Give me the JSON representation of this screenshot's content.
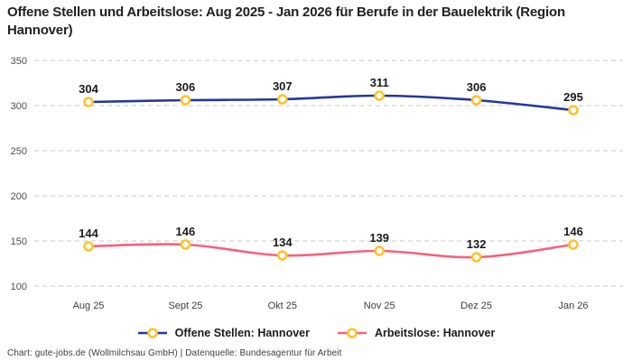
{
  "title": "Offene Stellen und Arbeitslose: Aug 2025 - Jan 2026 für Berufe in der Bauelektrik (Region Hannover)",
  "footer": "Chart: gute-jobs.de (Wollmilchsau GmbH) | Datenquelle: Bundesagentur für Arbeit",
  "colors": {
    "series_open_positions": "#25379c",
    "series_unemployed": "#f9617d",
    "marker_fill": "#ffffff",
    "marker_stroke": "#fcc42c",
    "gridline": "#c9c9c9",
    "title_text": "#212121",
    "tick_text": "#4d4d4d",
    "data_label_text": "#1b1b1b"
  },
  "chart_data": {
    "type": "line",
    "categories": [
      "Aug 25",
      "Sept 25",
      "Okt 25",
      "Nov 25",
      "Dez 25",
      "Jan 26"
    ],
    "series": [
      {
        "name": "Offene Stellen: Hannover",
        "color": "#25379c",
        "values": [
          304,
          306,
          307,
          311,
          306,
          295
        ]
      },
      {
        "name": "Arbeitslose: Hannover",
        "color": "#f9617d",
        "values": [
          144,
          146,
          134,
          139,
          132,
          146
        ]
      }
    ],
    "title": "Offene Stellen und Arbeitslose: Aug 2025 - Jan 2026 für Berufe in der Bauelektrik (Region Hannover)",
    "xlabel": "",
    "ylabel": "",
    "ylim": [
      100,
      350
    ],
    "yticks": [
      100,
      150,
      200,
      250,
      300,
      350
    ],
    "grid": "horizontal-dashed",
    "data_labels": true,
    "marker": "ring",
    "legend_position": "bottom"
  }
}
